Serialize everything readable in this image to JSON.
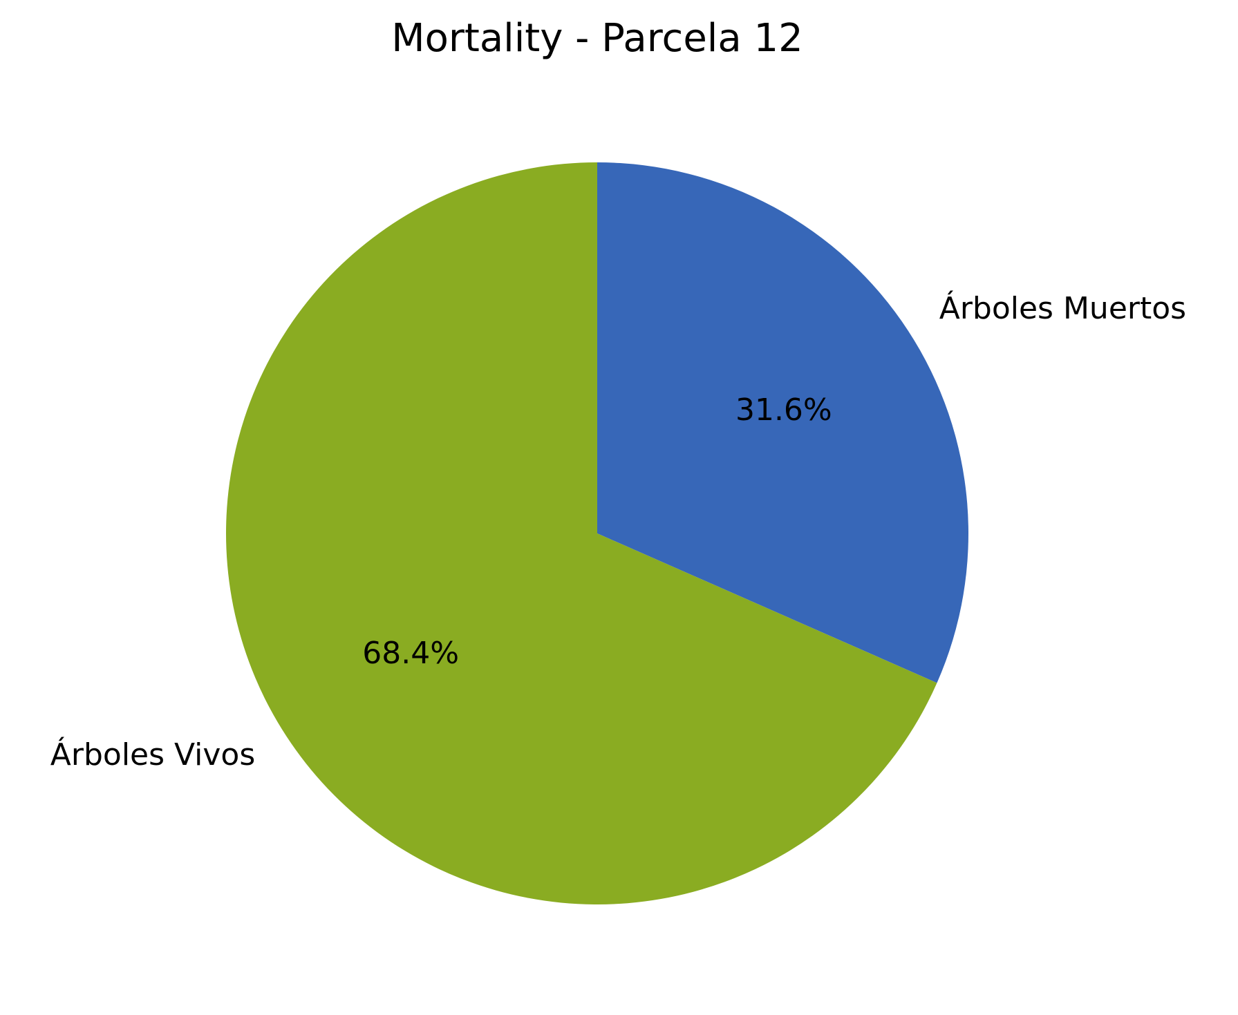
{
  "chart_data": {
    "type": "pie",
    "title": "Mortality - Parcela 12",
    "slices": [
      {
        "label": "Árboles Muertos",
        "value": 31.6,
        "pct_label": "31.6%",
        "color": "#3767b8"
      },
      {
        "label": "Árboles Vivos",
        "value": 68.4,
        "pct_label": "68.4%",
        "color": "#8aac22"
      }
    ],
    "start_angle_deg": 90,
    "direction": "clockwise",
    "legend": "none"
  }
}
